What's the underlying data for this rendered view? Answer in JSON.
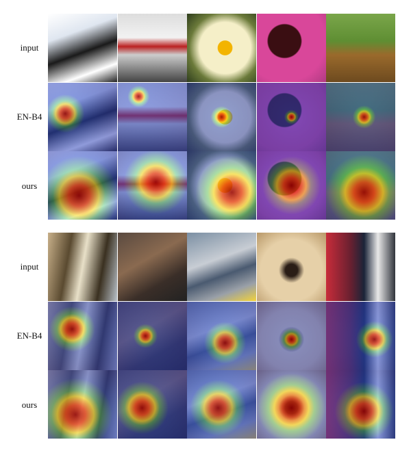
{
  "panels": [
    {
      "rows": [
        "input",
        "EN-B4",
        "ours"
      ]
    },
    {
      "rows": [
        "input",
        "EN-B4",
        "ours"
      ]
    }
  ]
}
